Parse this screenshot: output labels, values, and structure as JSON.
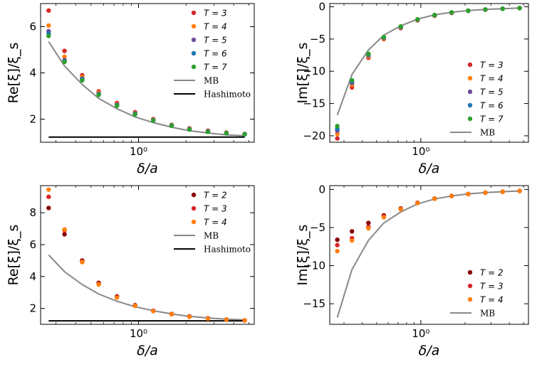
{
  "chart_data": [
    {
      "type": "scatter",
      "panel": "top-left",
      "xscale": "log",
      "xlim": [
        0.24,
        5.4
      ],
      "ylim": [
        1.0,
        7.0
      ],
      "xticks": [
        {
          "value": 1,
          "label": "10⁰"
        }
      ],
      "yticks": [
        {
          "value": 2,
          "label": "2"
        },
        {
          "value": 4,
          "label": "4"
        },
        {
          "value": 6,
          "label": "6"
        }
      ],
      "xlabel": "δ/a",
      "ylabel": "Re[ξ]/ξ_s",
      "legend_position": "top-right",
      "x": [
        0.27,
        0.34,
        0.44,
        0.56,
        0.73,
        0.95,
        1.24,
        1.62,
        2.1,
        2.75,
        3.6,
        4.7
      ],
      "series": [
        {
          "name": "T = 3",
          "color": "#d62728",
          "values": [
            6.7,
            4.95,
            3.9,
            3.2,
            2.7,
            2.3,
            2.0,
            1.75,
            1.6,
            1.5,
            1.42,
            1.36
          ]
        },
        {
          "name": "T = 4",
          "color": "#ff7f0e",
          "values": [
            6.05,
            4.7,
            3.82,
            3.15,
            2.65,
            2.26,
            1.98,
            1.74,
            1.58,
            1.48,
            1.41,
            1.35
          ]
        },
        {
          "name": "T = 5",
          "color": "#6b4c9a",
          "values": [
            5.8,
            4.55,
            3.75,
            3.1,
            2.62,
            2.24,
            1.96,
            1.73,
            1.57,
            1.47,
            1.4,
            1.35
          ]
        },
        {
          "name": "T = 6",
          "color": "#1f77b4",
          "values": [
            5.7,
            4.5,
            3.72,
            3.07,
            2.6,
            2.22,
            1.95,
            1.72,
            1.56,
            1.46,
            1.39,
            1.34
          ]
        },
        {
          "name": "T = 7",
          "color": "#2ca02c",
          "values": [
            5.6,
            4.48,
            3.68,
            3.05,
            2.58,
            2.2,
            1.94,
            1.71,
            1.55,
            1.45,
            1.39,
            1.34
          ]
        }
      ],
      "lines": [
        {
          "name": "MB",
          "color": "#888888",
          "x": [
            0.27,
            0.34,
            0.44,
            0.56,
            0.73,
            0.95,
            1.24,
            1.62,
            2.1,
            2.75,
            3.6,
            4.7
          ],
          "y": [
            5.35,
            4.3,
            3.5,
            2.9,
            2.45,
            2.1,
            1.85,
            1.65,
            1.5,
            1.4,
            1.32,
            1.28
          ]
        },
        {
          "name": "Hashimoto",
          "color": "#000000",
          "x": [
            0.27,
            4.7
          ],
          "y": [
            1.22,
            1.22
          ]
        }
      ]
    },
    {
      "type": "scatter",
      "panel": "top-right",
      "xscale": "log",
      "xlim": [
        0.24,
        5.4
      ],
      "ylim": [
        -21,
        0.5
      ],
      "xticks": [
        {
          "value": 1,
          "label": "10⁰"
        }
      ],
      "yticks": [
        {
          "value": 0,
          "label": "0"
        },
        {
          "value": -5,
          "label": "−5"
        },
        {
          "value": -10,
          "label": "−10"
        },
        {
          "value": -15,
          "label": "−15"
        },
        {
          "value": -20,
          "label": "−20"
        }
      ],
      "xlabel": "δ/a",
      "ylabel": "Im[ξ]/ξ_s",
      "legend_position": "bottom-right",
      "x": [
        0.27,
        0.34,
        0.44,
        0.56,
        0.73,
        0.95,
        1.24,
        1.62,
        2.1,
        2.75,
        3.6,
        4.7
      ],
      "series": [
        {
          "name": "T = 3",
          "color": "#d62728",
          "values": [
            -20.4,
            -12.5,
            -7.9,
            -5.0,
            -3.3,
            -2.1,
            -1.4,
            -0.95,
            -0.65,
            -0.45,
            -0.32,
            -0.22
          ]
        },
        {
          "name": "T = 4",
          "color": "#ff7f0e",
          "values": [
            -19.7,
            -12.1,
            -7.7,
            -4.9,
            -3.2,
            -2.05,
            -1.35,
            -0.92,
            -0.63,
            -0.44,
            -0.31,
            -0.21
          ]
        },
        {
          "name": "T = 5",
          "color": "#6b4c9a",
          "values": [
            -19.2,
            -11.8,
            -7.5,
            -4.8,
            -3.15,
            -2.0,
            -1.32,
            -0.9,
            -0.62,
            -0.43,
            -0.3,
            -0.21
          ]
        },
        {
          "name": "T = 6",
          "color": "#1f77b4",
          "values": [
            -18.9,
            -11.6,
            -7.4,
            -4.75,
            -3.1,
            -1.98,
            -1.3,
            -0.89,
            -0.61,
            -0.43,
            -0.3,
            -0.2
          ]
        },
        {
          "name": "T = 7",
          "color": "#2ca02c",
          "values": [
            -18.5,
            -11.4,
            -7.3,
            -4.7,
            -3.05,
            -1.95,
            -1.28,
            -0.88,
            -0.6,
            -0.42,
            -0.3,
            -0.2
          ]
        }
      ],
      "lines": [
        {
          "name": "MB",
          "color": "#888888",
          "x": [
            0.27,
            0.34,
            0.44,
            0.56,
            0.73,
            0.95,
            1.24,
            1.62,
            2.1,
            2.75,
            3.6,
            4.7
          ],
          "y": [
            -16.8,
            -10.5,
            -6.7,
            -4.4,
            -2.95,
            -1.9,
            -1.25,
            -0.85,
            -0.58,
            -0.41,
            -0.29,
            -0.2
          ]
        }
      ]
    },
    {
      "type": "scatter",
      "panel": "bottom-left",
      "xscale": "log",
      "xlim": [
        0.24,
        5.4
      ],
      "ylim": [
        1.0,
        9.7
      ],
      "xticks": [
        {
          "value": 1,
          "label": "10⁰"
        }
      ],
      "yticks": [
        {
          "value": 2,
          "label": "2"
        },
        {
          "value": 4,
          "label": "4"
        },
        {
          "value": 6,
          "label": "6"
        },
        {
          "value": 8,
          "label": "8"
        }
      ],
      "xlabel": "δ/a",
      "ylabel": "Re[ξ]/ξ_s",
      "legend_position": "top-right",
      "x": [
        0.27,
        0.34,
        0.44,
        0.56,
        0.73,
        0.95,
        1.24,
        1.62,
        2.1,
        2.75,
        3.6,
        4.7
      ],
      "series": [
        {
          "name": "T = 2",
          "color": "#8b0000",
          "values": [
            8.3,
            6.65,
            5.0,
            3.6,
            2.75,
            2.2,
            1.85,
            1.65,
            1.5,
            1.38,
            1.3,
            1.25
          ]
        },
        {
          "name": "T = 3",
          "color": "#d62728",
          "values": [
            9.0,
            6.9,
            4.95,
            3.55,
            2.7,
            2.18,
            1.84,
            1.64,
            1.48,
            1.37,
            1.29,
            1.24
          ]
        },
        {
          "name": "T = 4",
          "color": "#ff7f0e",
          "values": [
            9.45,
            6.95,
            4.9,
            3.5,
            2.68,
            2.16,
            1.83,
            1.63,
            1.47,
            1.36,
            1.29,
            1.24
          ]
        }
      ],
      "lines": [
        {
          "name": "MB",
          "color": "#888888",
          "x": [
            0.27,
            0.34,
            0.44,
            0.56,
            0.73,
            0.95,
            1.24,
            1.62,
            2.1,
            2.75,
            3.6,
            4.7
          ],
          "y": [
            5.35,
            4.3,
            3.5,
            2.9,
            2.45,
            2.1,
            1.85,
            1.65,
            1.5,
            1.4,
            1.32,
            1.28
          ]
        },
        {
          "name": "Hashimoto",
          "color": "#000000",
          "x": [
            0.27,
            4.7
          ],
          "y": [
            1.22,
            1.22
          ]
        }
      ]
    },
    {
      "type": "scatter",
      "panel": "bottom-right",
      "xscale": "log",
      "xlim": [
        0.24,
        5.4
      ],
      "ylim": [
        -17.7,
        0.5
      ],
      "xticks": [
        {
          "value": 1,
          "label": "10⁰"
        }
      ],
      "yticks": [
        {
          "value": 0,
          "label": "0"
        },
        {
          "value": -5,
          "label": "−5"
        },
        {
          "value": -10,
          "label": "−10"
        },
        {
          "value": -15,
          "label": "−15"
        }
      ],
      "xlabel": "δ/a",
      "ylabel": "Im[ξ]/ξ_s",
      "legend_position": "bottom-right",
      "x": [
        0.27,
        0.34,
        0.44,
        0.56,
        0.73,
        0.95,
        1.24,
        1.62,
        2.1,
        2.75,
        3.6,
        4.7
      ],
      "series": [
        {
          "name": "T = 2",
          "color": "#8b0000",
          "values": [
            -6.6,
            -5.5,
            -4.4,
            -3.4,
            -2.5,
            -1.75,
            -1.2,
            -0.85,
            -0.6,
            -0.42,
            -0.3,
            -0.2
          ]
        },
        {
          "name": "T = 3",
          "color": "#d62728",
          "values": [
            -7.3,
            -6.4,
            -4.9,
            -3.55,
            -2.55,
            -1.78,
            -1.22,
            -0.86,
            -0.61,
            -0.43,
            -0.3,
            -0.2
          ]
        },
        {
          "name": "T = 4",
          "color": "#ff7f0e",
          "values": [
            -8.1,
            -6.7,
            -5.1,
            -3.65,
            -2.6,
            -1.8,
            -1.23,
            -0.87,
            -0.61,
            -0.43,
            -0.3,
            -0.2
          ]
        }
      ],
      "lines": [
        {
          "name": "MB",
          "color": "#888888",
          "x": [
            0.27,
            0.34,
            0.44,
            0.56,
            0.73,
            0.95,
            1.24,
            1.62,
            2.1,
            2.75,
            3.6,
            4.7
          ],
          "y": [
            -16.8,
            -10.5,
            -6.7,
            -4.4,
            -2.95,
            -1.9,
            -1.25,
            -0.85,
            -0.58,
            -0.41,
            -0.29,
            -0.2
          ]
        }
      ]
    }
  ]
}
